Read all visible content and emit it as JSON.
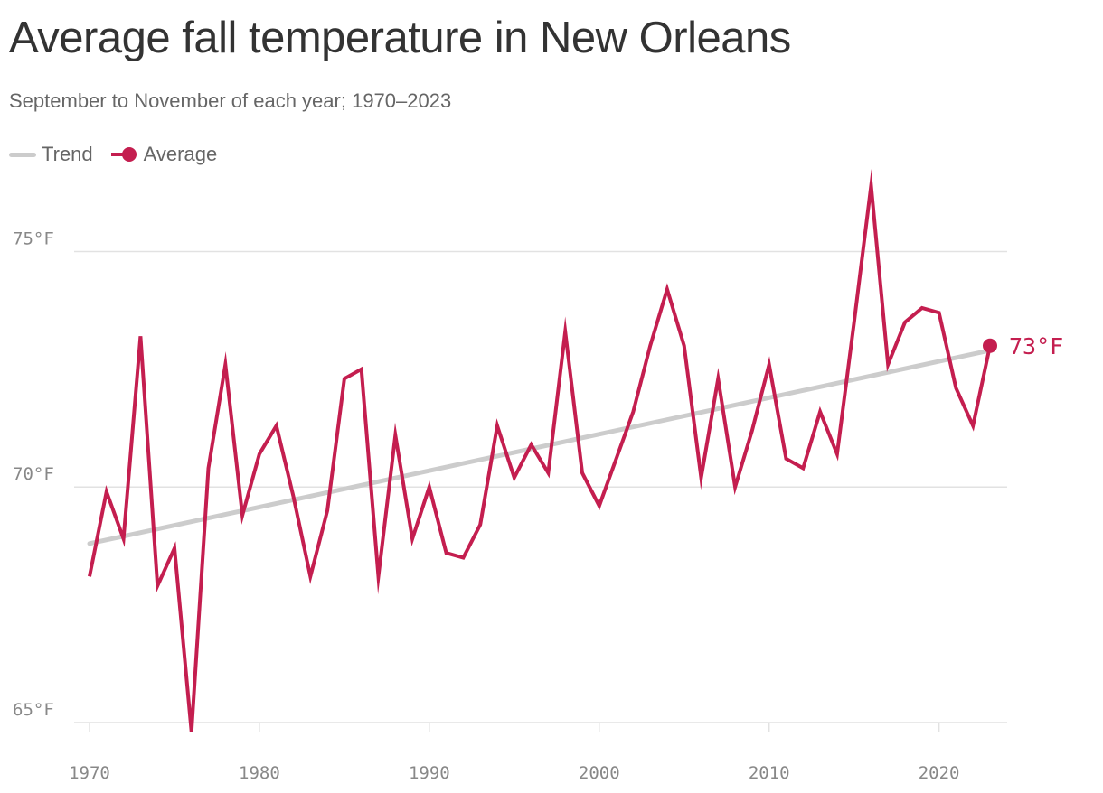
{
  "header": {
    "title": "Average fall temperature in New Orleans",
    "subtitle": "September to November of each year; 1970–2023"
  },
  "legend": {
    "trend_label": "Trend",
    "average_label": "Average"
  },
  "colors": {
    "average": "#c41e4f",
    "trend": "#cccccc",
    "grid": "#e2e2e2",
    "axis_text": "#888888"
  },
  "chart_data": {
    "type": "line",
    "title": "Average fall temperature in New Orleans",
    "subtitle": "September to November of each year; 1970–2023",
    "xlabel": "",
    "ylabel": "",
    "xlim": [
      1970,
      2023
    ],
    "ylim": [
      65,
      76.6
    ],
    "x_ticks": [
      1970,
      1980,
      1990,
      2000,
      2010,
      2020
    ],
    "y_ticks": [
      65,
      70,
      75
    ],
    "y_tick_labels": [
      "65°F",
      "70°F",
      "75°F"
    ],
    "grid": true,
    "legend_position": "top-left",
    "end_label": "73°F",
    "series": [
      {
        "name": "Average",
        "x": [
          1970,
          1971,
          1972,
          1973,
          1974,
          1975,
          1976,
          1977,
          1978,
          1979,
          1980,
          1981,
          1982,
          1983,
          1984,
          1985,
          1986,
          1987,
          1988,
          1989,
          1990,
          1991,
          1992,
          1993,
          1994,
          1995,
          1996,
          1997,
          1998,
          1999,
          2000,
          2001,
          2002,
          2003,
          2004,
          2005,
          2006,
          2007,
          2008,
          2009,
          2010,
          2011,
          2012,
          2013,
          2014,
          2015,
          2016,
          2017,
          2018,
          2019,
          2020,
          2021,
          2022,
          2023
        ],
        "values": [
          68.1,
          69.9,
          68.9,
          73.2,
          67.9,
          68.7,
          64.8,
          70.4,
          72.6,
          69.4,
          70.7,
          71.3,
          69.8,
          68.1,
          69.5,
          72.3,
          72.5,
          68.1,
          71.1,
          68.9,
          70.0,
          68.6,
          68.5,
          69.2,
          71.3,
          70.2,
          70.9,
          70.3,
          73.3,
          70.3,
          69.6,
          70.6,
          71.6,
          73.0,
          74.2,
          73.0,
          70.2,
          72.3,
          70.0,
          71.2,
          72.6,
          70.6,
          70.4,
          71.6,
          70.7,
          73.5,
          76.4,
          72.6,
          73.5,
          73.8,
          73.7,
          72.1,
          71.3,
          73.0
        ]
      },
      {
        "name": "Trend",
        "x": [
          1970,
          2023
        ],
        "values": [
          68.8,
          72.9
        ]
      }
    ]
  }
}
